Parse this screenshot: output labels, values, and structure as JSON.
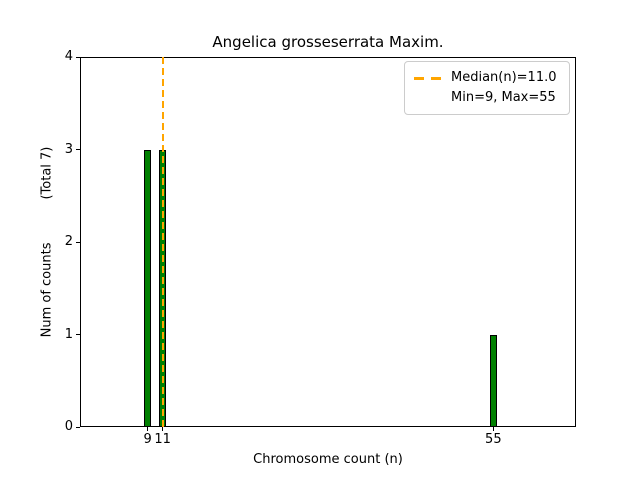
{
  "title": "Angelica grosseserrata Maxim.",
  "axes": {
    "xlabel": "Chromosome count (n)",
    "ylabel": "Num of counts",
    "ylabel_suffix": "(Total 7)"
  },
  "legend": {
    "entries": [
      {
        "handle": "orange-dashed-line",
        "label": "Median(n)=11.0"
      },
      {
        "handle": "none",
        "label": "Min=9, Max=55"
      }
    ]
  },
  "colors": {
    "bar_fill": "#008000",
    "bar_edge": "#000000",
    "median_line": "#ffa500",
    "axis": "#000000",
    "legend_border": "#cccccc"
  },
  "chart_data": {
    "type": "bar",
    "title": "Angelica grosseserrata Maxim.",
    "x": [
      9,
      11,
      55
    ],
    "values": [
      3,
      3,
      1
    ],
    "xtick_labels": [
      "9",
      "11",
      "55"
    ],
    "yticks": [
      0,
      1,
      2,
      3,
      4
    ],
    "xlabel": "Chromosome count (n)",
    "ylabel": "Num of counts (Total 7)",
    "xlim": [
      0,
      66
    ],
    "ylim": [
      0,
      4
    ],
    "median_line_x": 11,
    "min": 9,
    "max": 55,
    "total_counts": 7,
    "grid": false,
    "legend_position": "upper right"
  }
}
